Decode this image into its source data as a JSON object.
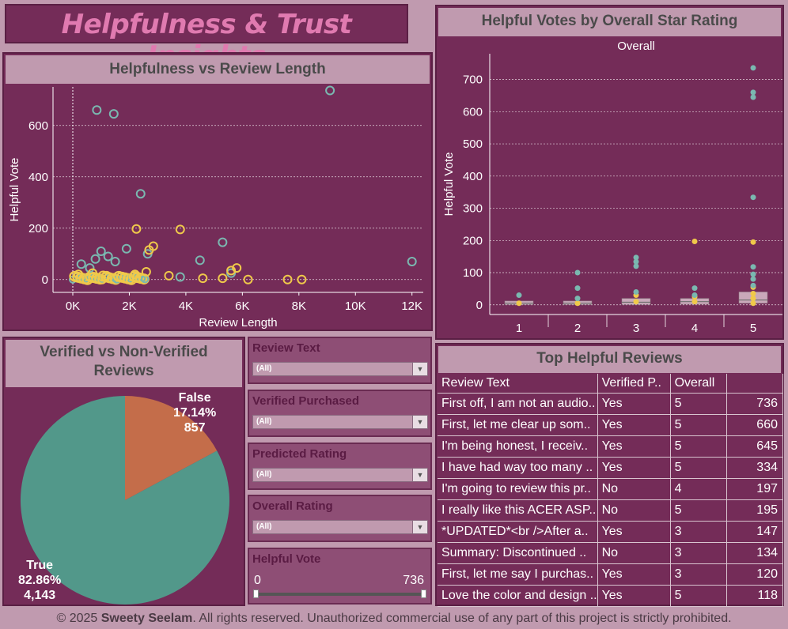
{
  "title": "Helpfulness & Trust Insights",
  "footer": {
    "prefix": "© 2025 ",
    "author": "Sweety Seelam",
    "suffix": ". All rights reserved. Unauthorized commercial use of any part of this project is strictly prohibited."
  },
  "colors": {
    "bg": "#c09aaf",
    "panel": "#742c58",
    "teal": "#7ab8b0",
    "yellow": "#f0c94a",
    "pie_true": "#52988a",
    "pie_false": "#c46d4a"
  },
  "scatter": {
    "header": "Helpfulness vs Review Length",
    "xlabel": "Review Length",
    "ylabel": "Helpful Vote",
    "xticks": [
      "0K",
      "2K",
      "4K",
      "6K",
      "8K",
      "10K",
      "12K"
    ],
    "yticks": [
      "0",
      "200",
      "400",
      "600"
    ]
  },
  "box": {
    "header": "Helpful Votes by Overall Star Rating",
    "subheader": "Overall",
    "ylabel": "Helpful Vote",
    "yticks": [
      "0",
      "100",
      "200",
      "300",
      "400",
      "500",
      "600",
      "700"
    ],
    "categories": [
      "1",
      "2",
      "3",
      "4",
      "5"
    ]
  },
  "pie": {
    "header_line1": "Verified vs Non-Verified",
    "header_line2": "Reviews",
    "false_label": "False",
    "false_pct": "17.14%",
    "false_count": "857",
    "true_label": "True",
    "true_pct": "82.86%",
    "true_count": "4,143"
  },
  "filters": [
    {
      "label": "Review Text",
      "value": "(All)"
    },
    {
      "label": "Verified Purchased",
      "value": "(All)"
    },
    {
      "label": "Predicted Rating",
      "value": "(All)"
    },
    {
      "label": "Overall Rating",
      "value": "(All)"
    }
  ],
  "slider": {
    "label": "Helpful Vote",
    "min": "0",
    "max": "736",
    "fraction_low": 0.0,
    "fraction_high": 1.0
  },
  "table": {
    "header": "Top Helpful Reviews",
    "columns": [
      "Review Text",
      "Verified P..",
      "Overall",
      ""
    ],
    "rows": [
      [
        "First off, I am not an audio..",
        "Yes",
        "5",
        "736"
      ],
      [
        "First, let me clear up som..",
        "Yes",
        "5",
        "660"
      ],
      [
        "I'm being honest, I receiv..",
        "Yes",
        "5",
        "645"
      ],
      [
        "I have had way too many ..",
        "Yes",
        "5",
        "334"
      ],
      [
        "I'm going to review this pr..",
        "No",
        "4",
        "197"
      ],
      [
        "I really like this ACER ASP..",
        "No",
        "5",
        "195"
      ],
      [
        "*UPDATED*<br />After a..",
        "Yes",
        "3",
        "147"
      ],
      [
        "Summary:  Discontinued ..",
        "No",
        "3",
        "134"
      ],
      [
        "First, let me say I purchas..",
        "Yes",
        "3",
        "120"
      ],
      [
        "Love the color and design ..",
        "Yes",
        "5",
        "118"
      ]
    ]
  },
  "chart_data": [
    {
      "type": "scatter",
      "title": "Helpfulness vs Review Length",
      "xlabel": "Review Length",
      "ylabel": "Helpful Vote",
      "xlim": [
        -700,
        12400
      ],
      "ylim": [
        -50,
        750
      ],
      "series": [
        {
          "name": "",
          "color": "#7ab8b0",
          "points": [
            [
              850,
              660
            ],
            [
              1450,
              645
            ],
            [
              9100,
              736
            ],
            [
              2400,
              334
            ],
            [
              12000,
              70
            ],
            [
              5300,
              145
            ],
            [
              4500,
              75
            ],
            [
              1900,
              120
            ],
            [
              2650,
              100
            ],
            [
              300,
              60
            ],
            [
              1000,
              110
            ],
            [
              1250,
              90
            ],
            [
              800,
              80
            ],
            [
              600,
              45
            ],
            [
              1500,
              70
            ],
            [
              3800,
              10
            ],
            [
              5600,
              25
            ]
          ]
        },
        {
          "name": "",
          "color": "#f0c94a",
          "points": [
            [
              2250,
              197
            ],
            [
              3800,
              195
            ],
            [
              2850,
              130
            ],
            [
              2700,
              115
            ],
            [
              6200,
              0
            ],
            [
              7600,
              0
            ],
            [
              8100,
              0
            ],
            [
              5800,
              45
            ],
            [
              5600,
              35
            ],
            [
              3400,
              15
            ],
            [
              4600,
              5
            ],
            [
              5300,
              5
            ],
            [
              200,
              20
            ],
            [
              700,
              25
            ],
            [
              1200,
              15
            ],
            [
              1700,
              10
            ],
            [
              2200,
              20
            ],
            [
              2600,
              30
            ]
          ]
        }
      ]
    },
    {
      "type": "box",
      "title": "Helpful Votes by Overall Star Rating",
      "xlabel": "Overall",
      "ylabel": "Helpful Vote",
      "categories": [
        "1",
        "2",
        "3",
        "4",
        "5"
      ],
      "ylim": [
        -30,
        780
      ],
      "boxes": [
        {
          "q1": 1,
          "median": 5,
          "q3": 12,
          "outliers_teal": [
            30
          ],
          "outliers_yellow": [
            5
          ]
        },
        {
          "q1": 1,
          "median": 5,
          "q3": 12,
          "outliers_teal": [
            100,
            52,
            20
          ],
          "outliers_yellow": [
            5
          ]
        },
        {
          "q1": 1,
          "median": 8,
          "q3": 20,
          "outliers_teal": [
            147,
            134,
            120,
            40
          ],
          "outliers_yellow": [
            30,
            10
          ]
        },
        {
          "q1": 2,
          "median": 10,
          "q3": 20,
          "outliers_teal": [
            52,
            30
          ],
          "outliers_yellow": [
            197,
            25,
            10
          ]
        },
        {
          "q1": 5,
          "median": 15,
          "q3": 40,
          "outliers_teal": [
            736,
            660,
            645,
            334,
            118,
            95,
            80,
            60
          ],
          "outliers_yellow": [
            195,
            55,
            35,
            20,
            5
          ]
        }
      ]
    },
    {
      "type": "pie",
      "title": "Verified vs Non-Verified Reviews",
      "slices": [
        {
          "label": "False",
          "value": 857,
          "percent": 17.14,
          "color": "#c46d4a"
        },
        {
          "label": "True",
          "value": 4143,
          "percent": 82.86,
          "color": "#52988a"
        }
      ]
    }
  ]
}
